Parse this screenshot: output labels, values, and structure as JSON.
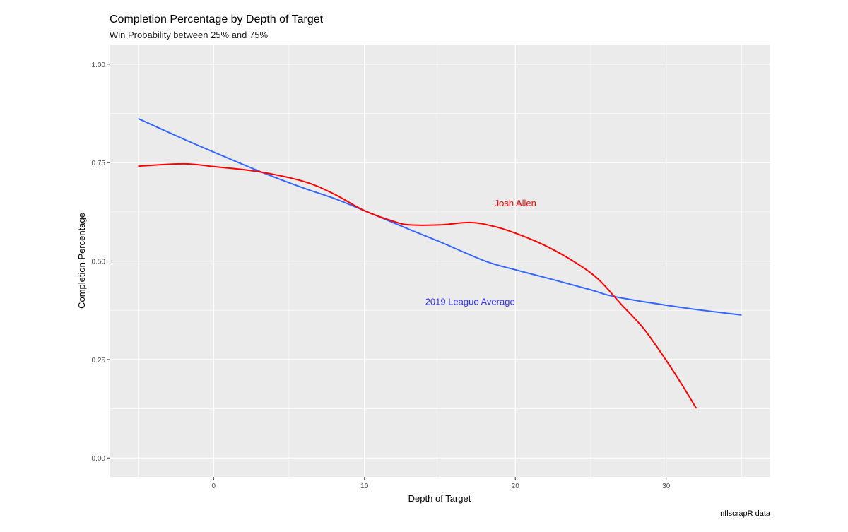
{
  "chart_data": {
    "type": "line",
    "title": "Completion Percentage by Depth of Target",
    "subtitle": "Win Probability between 25% and 75%",
    "xlabel": "Depth of Target",
    "ylabel": "Completion Percentage",
    "caption": "nflscrapR data",
    "xlim": [
      -6.9,
      36.9
    ],
    "ylim": [
      -0.048,
      1.05
    ],
    "x_ticks": [
      0,
      10,
      20,
      30
    ],
    "x_tick_labels": [
      "0",
      "10",
      "20",
      "30"
    ],
    "y_ticks": [
      0,
      0.25,
      0.5,
      0.75,
      1.0
    ],
    "y_tick_labels": [
      "0.00",
      "0.25",
      "0.50",
      "0.75",
      "1.00"
    ],
    "grid": true,
    "legend": "none",
    "series": [
      {
        "name": "2019 League Average",
        "color": "#3366FF",
        "x": [
          -5,
          -2,
          0,
          3.3,
          6,
          8,
          10,
          13,
          15,
          18,
          20,
          22,
          25,
          26.2,
          28,
          30,
          32,
          35
        ],
        "y": [
          0.862,
          0.81,
          0.777,
          0.724,
          0.685,
          0.659,
          0.628,
          0.58,
          0.549,
          0.5,
          0.478,
          0.458,
          0.427,
          0.413,
          0.4,
          0.388,
          0.377,
          0.363
        ]
      },
      {
        "name": "Josh Allen",
        "color": "#FF0000",
        "x": [
          -5,
          -2,
          0,
          3,
          6,
          8,
          10,
          12,
          13,
          15,
          17,
          18.5,
          20,
          22,
          24,
          25.5,
          27,
          28.5,
          30,
          31,
          32
        ],
        "y": [
          0.741,
          0.747,
          0.74,
          0.727,
          0.702,
          0.67,
          0.628,
          0.6,
          0.592,
          0.592,
          0.598,
          0.589,
          0.571,
          0.539,
          0.496,
          0.454,
          0.391,
          0.329,
          0.248,
          0.189,
          0.126
        ]
      }
    ],
    "annotations": [
      {
        "text": "Josh Allen",
        "x": 20,
        "y": 0.648,
        "color": "#FF0000"
      },
      {
        "text": "2019 League Average",
        "x": 17,
        "y": 0.398,
        "color": "#3333FF"
      }
    ]
  }
}
